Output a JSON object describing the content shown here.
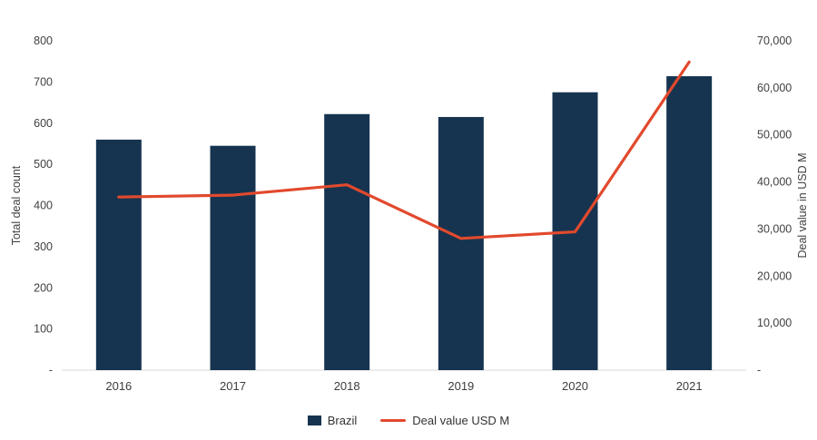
{
  "chart_data": {
    "type": "bar+line",
    "categories": [
      "2016",
      "2017",
      "2018",
      "2019",
      "2020",
      "2021"
    ],
    "series": [
      {
        "name": "Brazil",
        "type": "bar",
        "axis": "left",
        "color": "#16344f",
        "values": [
          560,
          545,
          622,
          615,
          675,
          714
        ]
      },
      {
        "name": "Deal value USD M",
        "type": "line",
        "axis": "right",
        "color": "#e2492d",
        "values": [
          36800,
          37200,
          39400,
          28000,
          29400,
          65500
        ]
      }
    ],
    "left_axis": {
      "label": "Total deal count",
      "min": 0,
      "max": 800,
      "step": 100,
      "zero_label": "-"
    },
    "right_axis": {
      "label": "Deal value in USD M",
      "min": 0,
      "max": 70000,
      "step": 10000,
      "zero_label": "-"
    },
    "legend_position": "bottom",
    "grid": false
  }
}
